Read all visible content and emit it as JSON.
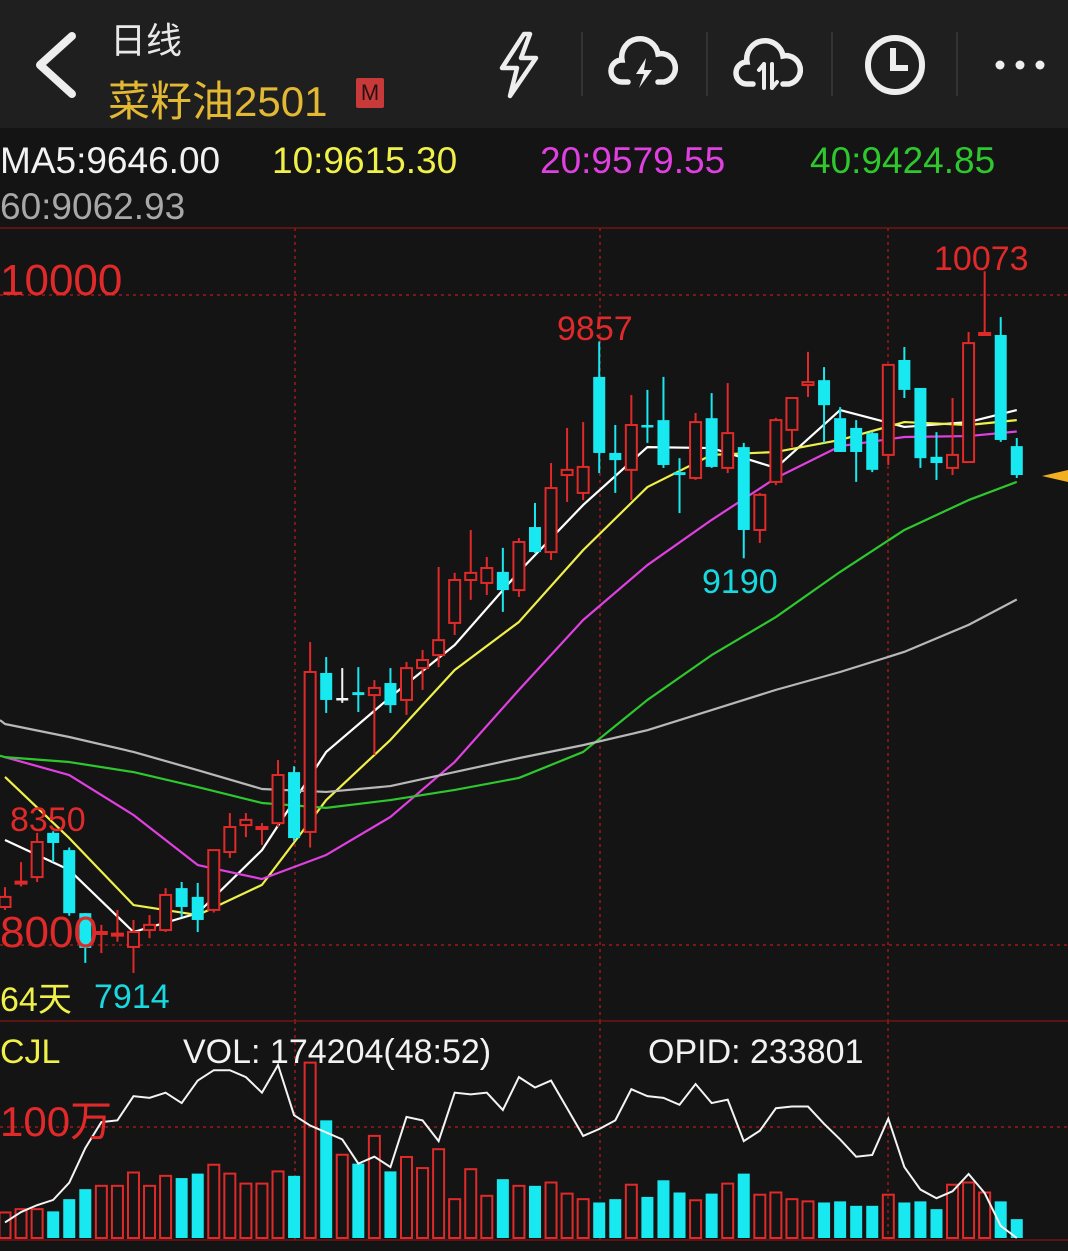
{
  "header": {
    "period": "日线",
    "symbol": "菜籽油2501",
    "badge": "M",
    "icons": [
      "back-chevron-icon",
      "lightning-icon",
      "cloud-lightning-icon",
      "cloud-transfer-icon",
      "clock-icon",
      "more-icon"
    ]
  },
  "ma_legend": {
    "ma5": "MA5:9646.00",
    "ma10": "10:9615.30",
    "ma20": "20:9579.55",
    "ma40": "40:9424.85",
    "ma60": "60:9062.93"
  },
  "colors": {
    "up": "#e02a2a",
    "down": "#18e8f0",
    "ma5": "#ffffff",
    "ma10": "#f0f04a",
    "ma20": "#e040e0",
    "ma40": "#2ec82e",
    "ma60": "#b8b8b8",
    "grid": "#7a1818",
    "accent": "#e3b832"
  },
  "price_labels": {
    "axis_top": "10000",
    "axis_bottom": "8000",
    "left_high": "8350",
    "period_low": "7914",
    "days": "64天",
    "mid_high": "9857",
    "mid_low": "9190",
    "period_high": "10073"
  },
  "volume_panel": {
    "indicator": "CJL",
    "vol": "VOL: 174204(48:52)",
    "opid": "OPID: 233801",
    "axis_label": "100万"
  },
  "chart_data": {
    "type": "candlestick",
    "price_axis": {
      "ticks": [
        10000,
        8000
      ],
      "range": [
        7914,
        10073
      ]
    },
    "candle_fields": [
      "open",
      "high",
      "low",
      "close"
    ],
    "candles": [
      [
        8117,
        8178,
        8108,
        8148
      ],
      [
        8190,
        8255,
        8180,
        8195
      ],
      [
        8209,
        8345,
        8194,
        8317
      ],
      [
        8345,
        8350,
        8255,
        8314
      ],
      [
        8292,
        8300,
        8090,
        8098
      ],
      [
        8098,
        8098,
        7945,
        7991
      ],
      [
        8035,
        8062,
        7975,
        8040
      ],
      [
        8030,
        8108,
        8010,
        8035
      ],
      [
        7994,
        8077,
        7914,
        8040
      ],
      [
        8046,
        8092,
        8021,
        8062
      ],
      [
        8046,
        8175,
        8040,
        8154
      ],
      [
        8175,
        8194,
        8086,
        8117
      ],
      [
        8148,
        8191,
        8040,
        8077
      ],
      [
        8108,
        8292,
        8100,
        8292
      ],
      [
        8286,
        8406,
        8268,
        8363
      ],
      [
        8369,
        8406,
        8332,
        8385
      ],
      [
        8357,
        8375,
        8308,
        8363
      ],
      [
        8375,
        8569,
        8363,
        8523
      ],
      [
        8532,
        8550,
        8320,
        8329
      ],
      [
        8348,
        8932,
        8300,
        8840
      ],
      [
        8837,
        8886,
        8714,
        8754
      ],
      [
        8760,
        8852,
        8745,
        8760
      ],
      [
        8778,
        8855,
        8717,
        8769
      ],
      [
        8769,
        8815,
        8585,
        8791
      ],
      [
        8806,
        8852,
        8714,
        8738
      ],
      [
        8754,
        8871,
        8708,
        8852
      ],
      [
        8852,
        8908,
        8785,
        8877
      ],
      [
        8892,
        9163,
        8855,
        8938
      ],
      [
        8991,
        9145,
        8954,
        9123
      ],
      [
        9123,
        9277,
        9062,
        9145
      ],
      [
        9114,
        9194,
        9077,
        9160
      ],
      [
        9148,
        9222,
        9025,
        9092
      ],
      [
        9092,
        9252,
        9071,
        9240
      ],
      [
        9286,
        9360,
        9206,
        9209
      ],
      [
        9209,
        9483,
        9185,
        9406
      ],
      [
        9446,
        9591,
        9363,
        9462
      ],
      [
        9391,
        9609,
        9369,
        9471
      ],
      [
        9748,
        9857,
        9452,
        9514
      ],
      [
        9514,
        9600,
        9391,
        9492
      ],
      [
        9462,
        9692,
        9369,
        9600
      ],
      [
        9600,
        9708,
        9545,
        9594
      ],
      [
        9615,
        9748,
        9468,
        9477
      ],
      [
        9455,
        9498,
        9329,
        9446
      ],
      [
        9437,
        9637,
        9431,
        9609
      ],
      [
        9621,
        9698,
        9468,
        9471
      ],
      [
        9468,
        9729,
        9452,
        9575
      ],
      [
        9532,
        9545,
        9190,
        9277
      ],
      [
        9277,
        9391,
        9237,
        9385
      ],
      [
        9425,
        9622,
        9415,
        9615
      ],
      [
        9585,
        9686,
        9532,
        9683
      ],
      [
        9723,
        9825,
        9686,
        9732
      ],
      [
        9738,
        9778,
        9545,
        9661
      ],
      [
        9621,
        9655,
        9517,
        9517
      ],
      [
        9591,
        9615,
        9425,
        9517
      ],
      [
        9575,
        9580,
        9455,
        9462
      ],
      [
        9508,
        9785,
        9477,
        9785
      ],
      [
        9800,
        9840,
        9683,
        9708
      ],
      [
        9714,
        9714,
        9468,
        9498
      ],
      [
        9502,
        9578,
        9431,
        9483
      ],
      [
        9468,
        9683,
        9446,
        9508
      ],
      [
        9486,
        9886,
        9483,
        9852
      ],
      [
        9877,
        10073,
        9877,
        9883
      ],
      [
        9877,
        9932,
        9548,
        9554
      ],
      [
        9535,
        9560,
        9437,
        9446
      ]
    ],
    "ma_sample_index": [
      0,
      4,
      8,
      12,
      16,
      20,
      24,
      28,
      32,
      36,
      40,
      44,
      48,
      52,
      56,
      60,
      63
    ],
    "moving_averages": [
      {
        "name": "MA5",
        "values": [
          8323,
          8231,
          8040,
          8098,
          8292,
          8594,
          8763,
          8923,
          9148,
          9354,
          9532,
          9529,
          9468,
          9646,
          9594,
          9609,
          9646
        ]
      },
      {
        "name": "10",
        "values": [
          8517,
          8329,
          8123,
          8092,
          8185,
          8446,
          8631,
          8846,
          8994,
          9215,
          9409,
          9508,
          9517,
          9554,
          9609,
          9600,
          9615
        ]
      },
      {
        "name": "20",
        "values": [
          8578,
          8523,
          8400,
          8246,
          8203,
          8277,
          8394,
          8563,
          8785,
          9000,
          9169,
          9308,
          9437,
          9535,
          9563,
          9566,
          9580
        ]
      },
      {
        "name": "40",
        "values": [
          8578,
          8563,
          8532,
          8486,
          8437,
          8422,
          8446,
          8477,
          8514,
          8594,
          8754,
          8892,
          9009,
          9148,
          9277,
          9369,
          9425
        ]
      },
      {
        "name": "60",
        "values": [
          8680,
          8640,
          8594,
          8538,
          8480,
          8471,
          8489,
          8532,
          8575,
          8615,
          8661,
          8723,
          8785,
          8840,
          8902,
          8985,
          9063
        ]
      }
    ],
    "volume_unit": "万",
    "volume_axis": {
      "ticks": [
        100
      ]
    },
    "volume": [
      23,
      26,
      26,
      24,
      35,
      44,
      47,
      47,
      59,
      47,
      56,
      54,
      58,
      66,
      58,
      49,
      49,
      60,
      56,
      158,
      106,
      75,
      67,
      92,
      60,
      73,
      63,
      80,
      35,
      62,
      38,
      53,
      47,
      47,
      50,
      40,
      35,
      32,
      35,
      48,
      37,
      52,
      41,
      34,
      40,
      49,
      58,
      39,
      41,
      35,
      33,
      32,
      33,
      29,
      29,
      39,
      32,
      33,
      26,
      48,
      50,
      41,
      33,
      17
    ],
    "open_interest_level_pct": [
      9,
      15,
      19,
      22,
      32,
      52,
      67,
      68,
      82,
      81,
      84,
      78,
      91,
      97,
      97,
      93,
      84,
      100,
      71,
      65,
      61,
      57,
      43,
      47,
      41,
      70,
      68,
      56,
      84,
      83,
      84,
      74,
      93,
      87,
      91,
      75,
      59,
      63,
      68,
      86,
      82,
      81,
      77,
      89,
      78,
      80,
      56,
      62,
      75,
      76,
      76,
      66,
      57,
      47,
      48,
      69,
      41,
      28,
      23,
      27,
      37,
      26,
      7,
      0
    ],
    "grid": true
  }
}
